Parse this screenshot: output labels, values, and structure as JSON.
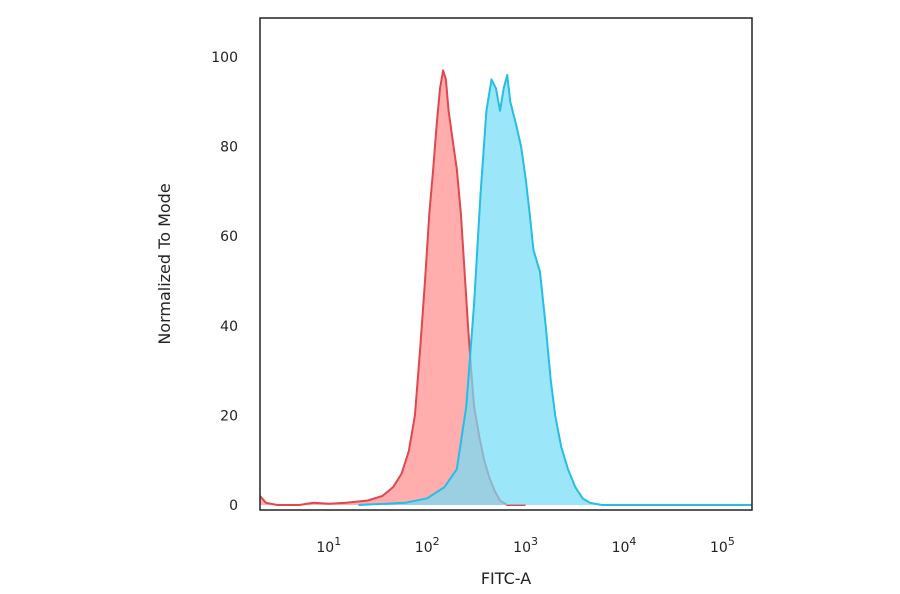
{
  "chart_data": {
    "type": "area",
    "xlabel": "FITC-A",
    "ylabel": "Normalized To Mode",
    "xscale": "log",
    "xlim": [
      2,
      200000
    ],
    "ylim": [
      0,
      100
    ],
    "grid": false,
    "y_ticks": [
      0,
      20,
      40,
      60,
      80,
      100
    ],
    "x_ticks": [
      {
        "base": "10",
        "exp": "1",
        "value": 10
      },
      {
        "base": "10",
        "exp": "2",
        "value": 100
      },
      {
        "base": "10",
        "exp": "3",
        "value": 1000
      },
      {
        "base": "10",
        "exp": "4",
        "value": 10000
      },
      {
        "base": "10",
        "exp": "5",
        "value": 100000
      }
    ],
    "series": [
      {
        "color": "#e0474f",
        "fill": "#ff8e8e",
        "points": [
          [
            2,
            2
          ],
          [
            2.3,
            0.5
          ],
          [
            3,
            0
          ],
          [
            5,
            0
          ],
          [
            7,
            0.5
          ],
          [
            10,
            0.3
          ],
          [
            15,
            0.5
          ],
          [
            25,
            1
          ],
          [
            35,
            2
          ],
          [
            45,
            4
          ],
          [
            55,
            7
          ],
          [
            65,
            12
          ],
          [
            75,
            20
          ],
          [
            85,
            35
          ],
          [
            95,
            50
          ],
          [
            105,
            65
          ],
          [
            115,
            75
          ],
          [
            125,
            85
          ],
          [
            135,
            93
          ],
          [
            145,
            97
          ],
          [
            155,
            95
          ],
          [
            165,
            88
          ],
          [
            180,
            82
          ],
          [
            200,
            75
          ],
          [
            220,
            65
          ],
          [
            240,
            52
          ],
          [
            260,
            40
          ],
          [
            280,
            30
          ],
          [
            300,
            22
          ],
          [
            340,
            15
          ],
          [
            380,
            10
          ],
          [
            430,
            6
          ],
          [
            490,
            3
          ],
          [
            550,
            1
          ],
          [
            650,
            0
          ],
          [
            1000,
            0
          ]
        ]
      },
      {
        "color": "#26bde6",
        "fill": "#74dcf7",
        "points": [
          [
            20,
            0
          ],
          [
            60,
            0.5
          ],
          [
            100,
            1.5
          ],
          [
            150,
            4
          ],
          [
            200,
            8
          ],
          [
            250,
            22
          ],
          [
            300,
            45
          ],
          [
            350,
            70
          ],
          [
            400,
            88
          ],
          [
            450,
            95
          ],
          [
            500,
            93
          ],
          [
            550,
            88
          ],
          [
            600,
            93
          ],
          [
            650,
            96
          ],
          [
            700,
            90
          ],
          [
            800,
            85
          ],
          [
            900,
            80
          ],
          [
            1000,
            73
          ],
          [
            1100,
            65
          ],
          [
            1200,
            57
          ],
          [
            1400,
            52
          ],
          [
            1600,
            40
          ],
          [
            1800,
            28
          ],
          [
            2000,
            20
          ],
          [
            2300,
            13
          ],
          [
            2700,
            8
          ],
          [
            3200,
            4
          ],
          [
            3800,
            1.5
          ],
          [
            4500,
            0.5
          ],
          [
            6000,
            0
          ],
          [
            200000,
            0
          ]
        ]
      }
    ]
  }
}
